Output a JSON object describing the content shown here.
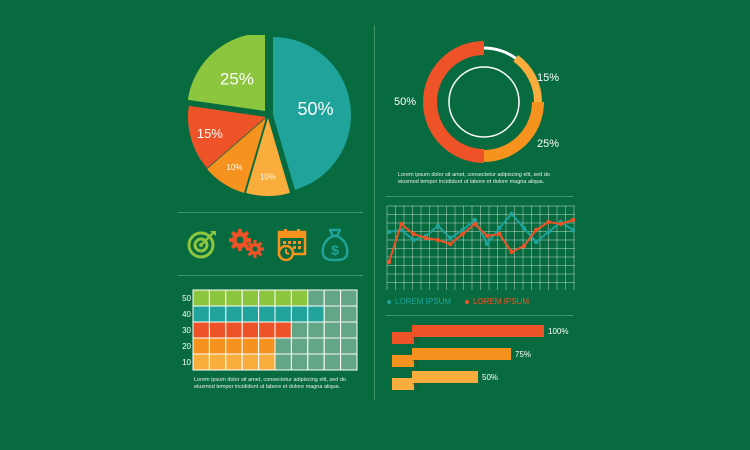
{
  "colors": {
    "background": "#076b3f",
    "teal": "#1fa39a",
    "green": "#8cc63f",
    "red": "#ee5327",
    "orange": "#f6921e",
    "light_orange": "#f9ad3c",
    "grid_line": "#ffffff",
    "muted_cell": "#62a685"
  },
  "caption_text": "Lorem ipsum dolor sit amet, consectetur adipiscing elit, sed do eiusmod tempor incididunt ut labore et dolore magna aliqua.",
  "icons": [
    {
      "name": "target-icon",
      "color": "#8cc63f"
    },
    {
      "name": "gears-icon",
      "color": "#ee5327"
    },
    {
      "name": "calendar-icon",
      "color": "#f6921e"
    },
    {
      "name": "money-bag-icon",
      "color": "#1fa39a"
    }
  ],
  "chart_data": [
    {
      "type": "pie",
      "slices": [
        {
          "label": "50%",
          "value": 50,
          "color": "#1fa39a"
        },
        {
          "label": "10%",
          "value": 10,
          "color": "#f9ad3c"
        },
        {
          "label": "10%",
          "value": 10,
          "color": "#f6921e"
        },
        {
          "label": "15%",
          "value": 15,
          "color": "#ee5327"
        },
        {
          "label": "25%",
          "value": 25,
          "color": "#8cc63f"
        }
      ]
    },
    {
      "type": "pie",
      "variant": "donut",
      "slices": [
        {
          "label": "15%",
          "value": 15,
          "color": "#f9ad3c"
        },
        {
          "label": "25%",
          "value": 25,
          "color": "#f6921e"
        },
        {
          "label": "50%",
          "value": 50,
          "color": "#ee5327"
        }
      ],
      "gap_value": 10
    },
    {
      "type": "line",
      "x": [
        0,
        1,
        2,
        3,
        4,
        5,
        6,
        7,
        8,
        9,
        10,
        11,
        12,
        13,
        14,
        15
      ],
      "series": [
        {
          "name": "LOREM IPSUM",
          "color": "#1fa39a",
          "values": [
            29,
            30,
            25,
            27,
            32,
            26,
            30,
            35,
            23,
            31,
            38,
            31,
            24,
            29,
            34,
            30
          ]
        },
        {
          "name": "LOREM IPSUM",
          "color": "#ee5327",
          "values": [
            14,
            33,
            28,
            26,
            25,
            23,
            28,
            33,
            27,
            28,
            19,
            22,
            30,
            34,
            33,
            35
          ]
        }
      ],
      "ylim": [
        0,
        42
      ],
      "grid": true,
      "legend": "bottom"
    },
    {
      "type": "heatmap",
      "ytick_labels": [
        "50",
        "40",
        "30",
        "20",
        "10"
      ],
      "columns": 10,
      "rows": [
        {
          "label": "50",
          "filled": 7,
          "color": "#8cc63f"
        },
        {
          "label": "40",
          "filled": 8,
          "color": "#1fa39a"
        },
        {
          "label": "30",
          "filled": 6,
          "color": "#ee5327"
        },
        {
          "label": "20",
          "filled": 5,
          "color": "#f6921e"
        },
        {
          "label": "10",
          "filled": 5,
          "color": "#f9ad3c"
        }
      ]
    },
    {
      "type": "bar",
      "orientation": "horizontal",
      "categories": [
        "100%",
        "75%",
        "50%"
      ],
      "values": [
        100,
        75,
        50
      ],
      "colors": [
        "#ee5327",
        "#f6921e",
        "#f9ad3c"
      ],
      "xlim": [
        0,
        100
      ]
    }
  ]
}
